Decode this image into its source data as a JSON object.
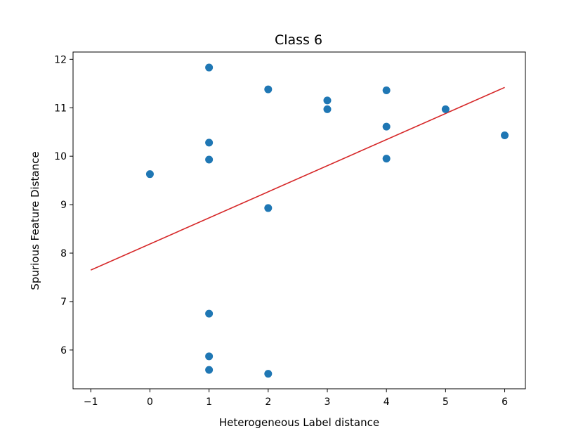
{
  "chart_data": {
    "type": "scatter",
    "title": "Class 6",
    "xlabel": "Heterogeneous Label distance",
    "ylabel": "Spurious Feature Distance",
    "xlim": [
      -1.3,
      6.35
    ],
    "ylim": [
      5.2,
      12.15
    ],
    "xticks": [
      -1,
      0,
      1,
      2,
      3,
      4,
      5,
      6
    ],
    "xtick_labels": [
      "−1",
      "0",
      "1",
      "2",
      "3",
      "4",
      "5",
      "6"
    ],
    "yticks": [
      6,
      7,
      8,
      9,
      10,
      11,
      12
    ],
    "ytick_labels": [
      "6",
      "7",
      "8",
      "9",
      "10",
      "11",
      "12"
    ],
    "grid": false,
    "series": [
      {
        "points": [
          {
            "x": 0,
            "y": 9.63
          },
          {
            "x": 1,
            "y": 11.83
          },
          {
            "x": 1,
            "y": 10.28
          },
          {
            "x": 1,
            "y": 9.93
          },
          {
            "x": 1,
            "y": 6.75
          },
          {
            "x": 1,
            "y": 5.87
          },
          {
            "x": 1,
            "y": 5.59
          },
          {
            "x": 2,
            "y": 11.38
          },
          {
            "x": 2,
            "y": 8.93
          },
          {
            "x": 2,
            "y": 5.51
          },
          {
            "x": 3,
            "y": 11.15
          },
          {
            "x": 3,
            "y": 10.97
          },
          {
            "x": 4,
            "y": 11.36
          },
          {
            "x": 4,
            "y": 10.61
          },
          {
            "x": 4,
            "y": 9.95
          },
          {
            "x": 5,
            "y": 10.97
          },
          {
            "x": 6,
            "y": 10.43
          }
        ],
        "color": "#1f77b4"
      }
    ],
    "fit_line": {
      "x": [
        -1,
        6
      ],
      "y": [
        7.65,
        11.42
      ],
      "color": "#d62728"
    }
  }
}
